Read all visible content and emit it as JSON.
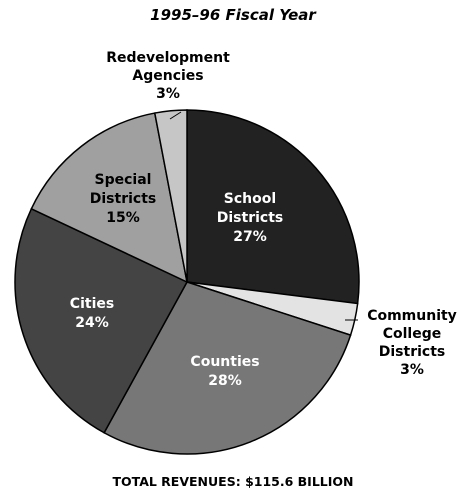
{
  "chart_title": "1995–96 Fiscal Year",
  "footer_text": "TOTAL REVENUES: $115.6 BILLION",
  "chart_data": {
    "type": "pie",
    "title": "1995–96 Fiscal Year",
    "slices": [
      {
        "label": [
          "School",
          "Districts",
          "27%"
        ],
        "value": 27,
        "color": "#222222",
        "text_color": "#ffffff"
      },
      {
        "label": [
          "Community",
          "College",
          "Districts",
          "3%"
        ],
        "value": 3,
        "color": "#e3e3e3",
        "text_color": "#000000"
      },
      {
        "label": [
          "Counties",
          "28%"
        ],
        "value": 28,
        "color": "#777777",
        "text_color": "#ffffff"
      },
      {
        "label": [
          "Cities",
          "24%"
        ],
        "value": 24,
        "color": "#444444",
        "text_color": "#ffffff"
      },
      {
        "label": [
          "Special",
          "Districts",
          "15%"
        ],
        "value": 15,
        "color": "#a0a0a0",
        "text_color": "#000000"
      },
      {
        "label": [
          "Redevelopment",
          "Agencies",
          "3%"
        ],
        "value": 3,
        "color": "#c6c6c6",
        "text_color": "#000000"
      }
    ]
  }
}
